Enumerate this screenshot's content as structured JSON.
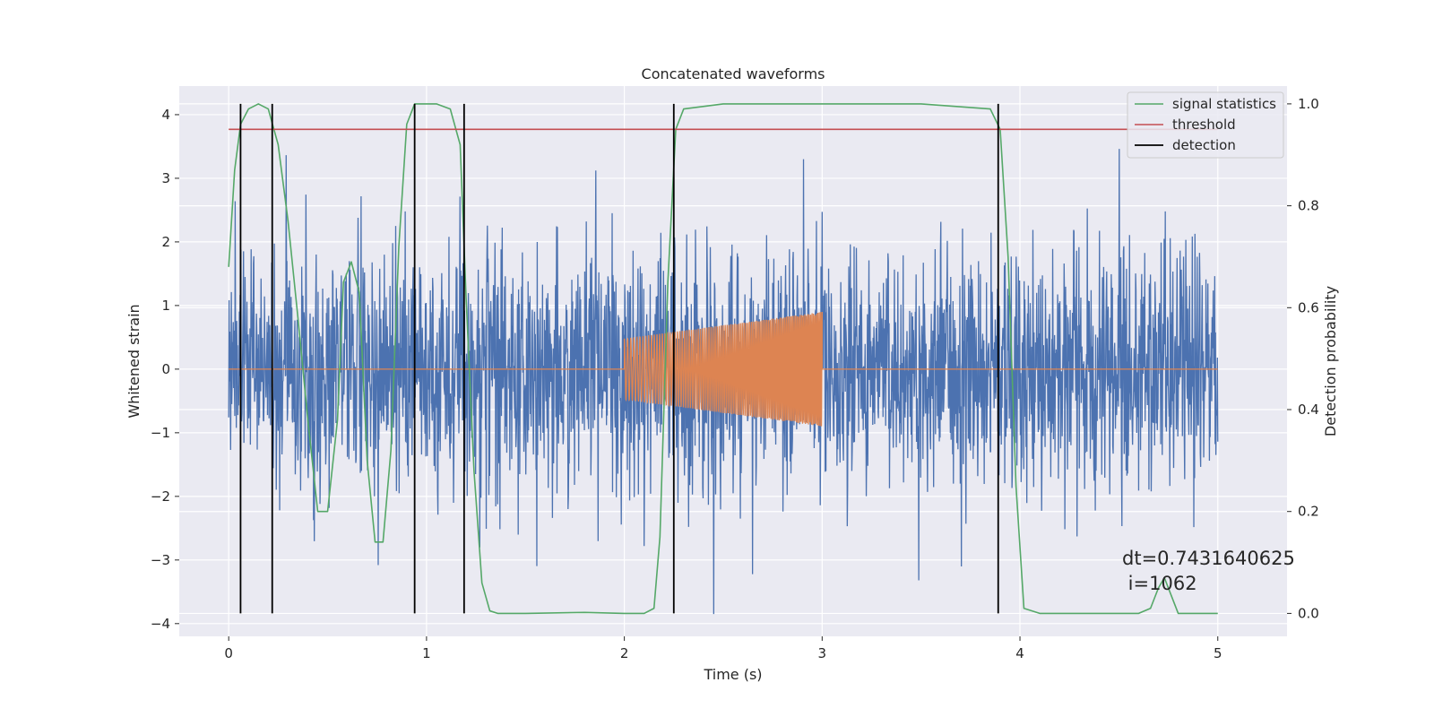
{
  "chart_data": {
    "type": "line",
    "title": "Concatenated waveforms",
    "xlabel": "Time (s)",
    "ylabel": "Whitened strain",
    "y2label": "Detection probability",
    "xlim": [
      -0.25,
      5.35
    ],
    "ylim": [
      -4.2,
      4.45
    ],
    "y2lim": [
      -0.045,
      1.035
    ],
    "x_ticks": [
      0,
      1,
      2,
      3,
      4,
      5
    ],
    "y_ticks": [
      -4,
      -3,
      -2,
      -1,
      0,
      1,
      2,
      3,
      4
    ],
    "y2_ticks": [
      0.0,
      0.2,
      0.4,
      0.6,
      0.8,
      1.0
    ],
    "y2_tick_labels": [
      "0.0",
      "0.2",
      "0.4",
      "0.6",
      "0.8",
      "1.0"
    ],
    "grid": true,
    "legend_position": "top-right",
    "series": [
      {
        "name": "",
        "axis": "left",
        "kind": "noise",
        "x_range": [
          0,
          5
        ],
        "envelope": "approximately ±2.5 with peaks near 4",
        "color": "#4c72b0"
      },
      {
        "name": "",
        "axis": "left",
        "kind": "chirp",
        "x_range": [
          2,
          3
        ],
        "amplitude_start": 0.48,
        "amplitude_end": 0.9,
        "flat_value": 0,
        "color": "#dd8452"
      },
      {
        "name": "signal statistics",
        "axis": "right",
        "color": "#55a868",
        "x": [
          0,
          0.03,
          0.06,
          0.1,
          0.15,
          0.2,
          0.25,
          0.3,
          0.35,
          0.4,
          0.45,
          0.5,
          0.55,
          0.58,
          0.62,
          0.66,
          0.7,
          0.74,
          0.78,
          0.82,
          0.86,
          0.9,
          0.94,
          0.98,
          1.05,
          1.12,
          1.17,
          1.2,
          1.24,
          1.28,
          1.32,
          1.36,
          1.5,
          1.8,
          2.0,
          2.1,
          2.15,
          2.18,
          2.22,
          2.26,
          2.3,
          2.5,
          3.0,
          3.5,
          3.85,
          3.9,
          3.94,
          3.98,
          4.02,
          4.1,
          4.3,
          4.6,
          4.66,
          4.7,
          4.73,
          4.76,
          4.8,
          4.85,
          5.0
        ],
        "values": [
          0.68,
          0.87,
          0.96,
          0.99,
          1.0,
          0.99,
          0.92,
          0.77,
          0.58,
          0.38,
          0.2,
          0.2,
          0.38,
          0.65,
          0.69,
          0.63,
          0.3,
          0.14,
          0.14,
          0.32,
          0.72,
          0.96,
          1.0,
          1.0,
          1.0,
          0.99,
          0.92,
          0.62,
          0.28,
          0.06,
          0.005,
          0.0,
          0.0,
          0.002,
          0.0,
          0.0,
          0.01,
          0.15,
          0.65,
          0.95,
          0.99,
          1.0,
          1.0,
          1.0,
          0.99,
          0.95,
          0.7,
          0.25,
          0.01,
          0.0,
          0.0,
          0.0,
          0.01,
          0.05,
          0.07,
          0.04,
          0.0,
          0.0,
          0.0
        ]
      },
      {
        "name": "threshold",
        "axis": "right",
        "color": "#c44e52",
        "x": [
          0,
          5
        ],
        "values": [
          0.95,
          0.95
        ]
      },
      {
        "name": "detection",
        "axis": "right",
        "color": "#000000",
        "kind": "vertical_lines",
        "x": [
          0.06,
          0.22,
          0.94,
          1.19,
          2.25,
          3.89
        ],
        "y_range": [
          0,
          1
        ]
      }
    ],
    "annotation": {
      "line1": "dt=0.7431640625",
      "line2": " i=1062"
    }
  }
}
